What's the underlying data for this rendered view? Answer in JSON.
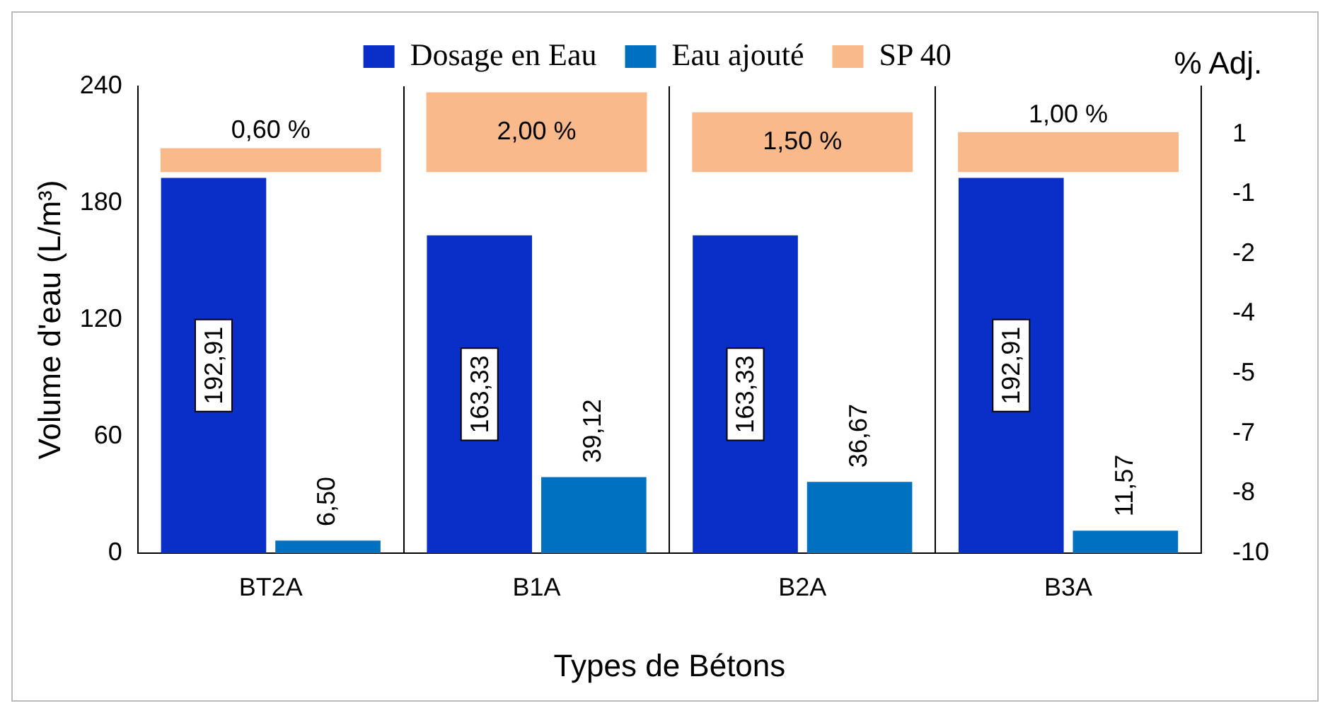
{
  "chart_data": {
    "type": "bar",
    "xlabel": "Types de Bétons",
    "ylabel": "Volume d'eau (L/m³)",
    "y2label": "% Adj.",
    "categories": [
      "BT2A",
      "B1A",
      "B2A",
      "B3A"
    ],
    "series": [
      {
        "name": "Dosage en Eau",
        "color": "#0a2fc8",
        "values": [
          192.91,
          163.33,
          163.33,
          192.91
        ],
        "value_labels": [
          "192,91",
          "163,33",
          "163,33",
          "192,91"
        ]
      },
      {
        "name": "Eau ajouté",
        "color": "#0070c0",
        "values": [
          6.5,
          39.12,
          36.67,
          11.57
        ],
        "value_labels": [
          "6,50",
          "39,12",
          "36,67",
          "11,57"
        ]
      },
      {
        "name": "SP 40",
        "color": "#f9b98a",
        "axis": "y2",
        "base": [
          -0.45,
          -0.45,
          -0.45,
          -0.45
        ],
        "values": [
          0.6,
          2,
          1.5,
          1
        ],
        "value_labels": [
          "0,60 %",
          "2,00 %",
          "1,50 %",
          "1,00 %"
        ]
      }
    ],
    "ylim": [
      0,
      240
    ],
    "yticks": [
      0,
      60,
      120,
      180,
      240
    ],
    "y2lim": [
      -10,
      1.7
    ],
    "y2ticks": [
      {
        "value": -10,
        "label": "-10"
      },
      {
        "value": -8.5,
        "label": "-8"
      },
      {
        "value": -7,
        "label": "-7"
      },
      {
        "value": -5.5,
        "label": "-5"
      },
      {
        "value": -4,
        "label": "-4"
      },
      {
        "value": -2.5,
        "label": "-2"
      },
      {
        "value": -1,
        "label": "-1"
      },
      {
        "value": 0.5,
        "label": "1"
      }
    ],
    "grid": "x",
    "legend": "top"
  }
}
